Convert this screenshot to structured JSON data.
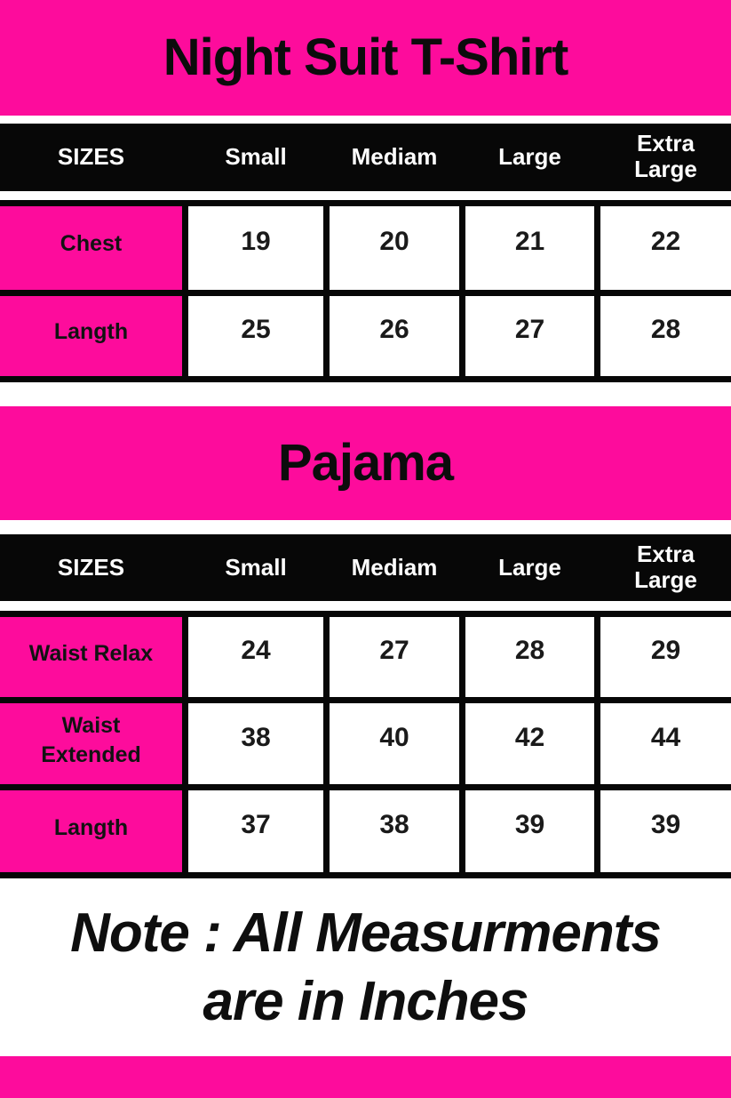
{
  "palette": {
    "pink": "#fd0c9c",
    "black": "#070707",
    "white": "#ffffff"
  },
  "tshirt": {
    "title": "Night Suit T-Shirt",
    "headers": [
      "SIZES",
      "Small",
      "Mediam",
      "Large",
      "Extra Large"
    ],
    "rows": [
      {
        "label": "Chest",
        "values": [
          "19",
          "20",
          "21",
          "22"
        ]
      },
      {
        "label": "Langth",
        "values": [
          "25",
          "26",
          "27",
          "28"
        ]
      }
    ]
  },
  "pajama": {
    "title": "Pajama",
    "headers": [
      "SIZES",
      "Small",
      "Mediam",
      "Large",
      "Extra Large"
    ],
    "rows": [
      {
        "label": "Waist Relax",
        "values": [
          "24",
          "27",
          "28",
          "29"
        ]
      },
      {
        "label": "Waist Extended",
        "values": [
          "38",
          "40",
          "42",
          "44"
        ]
      },
      {
        "label": "Langth",
        "values": [
          "37",
          "38",
          "39",
          "39"
        ]
      }
    ]
  },
  "note": {
    "line1": "Note : All Measurments",
    "line2": "are in Inches"
  }
}
